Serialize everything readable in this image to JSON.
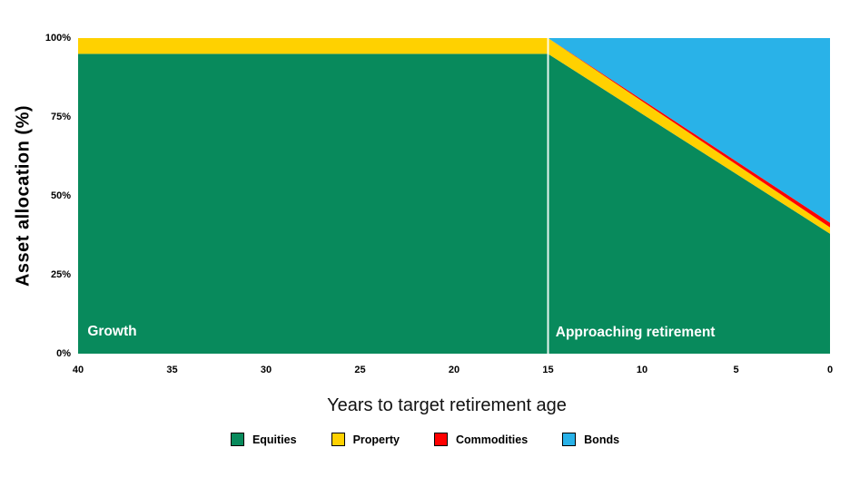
{
  "chart_data": {
    "type": "area",
    "stacked": true,
    "title": "",
    "xlabel": "Years to target retirement age",
    "ylabel": "Asset allocation (%)",
    "xlim": [
      40,
      0
    ],
    "ylim": [
      0,
      100
    ],
    "x_axis_reversed": true,
    "grid": false,
    "legend_position": "bottom",
    "x": [
      40,
      15,
      0
    ],
    "series": [
      {
        "name": "Equities",
        "color": "#088A5C",
        "values": [
          95,
          95,
          38
        ]
      },
      {
        "name": "Property",
        "color": "#FFD100",
        "values": [
          5,
          5,
          2
        ]
      },
      {
        "name": "Commodities",
        "color": "#FF0000",
        "values": [
          0,
          0,
          1.5
        ]
      },
      {
        "name": "Bonds",
        "color": "#29B2E8",
        "values": [
          0,
          0,
          58.5
        ]
      }
    ],
    "x_tick_labels": [
      "40",
      "35",
      "30",
      "25",
      "20",
      "15",
      "10",
      "5",
      "0"
    ],
    "y_tick_labels": [
      "0%",
      "25%",
      "50%",
      "75%",
      "100%"
    ],
    "phase_divider": {
      "x": 15,
      "color": "#FFFFFF"
    },
    "annotations": [
      {
        "text": "Growth",
        "x": 39.5,
        "y": 7,
        "color": "#FFFFFF"
      },
      {
        "text": "Approaching retirement",
        "x": 14.6,
        "y": 6.5,
        "color": "#FFFFFF"
      }
    ]
  }
}
